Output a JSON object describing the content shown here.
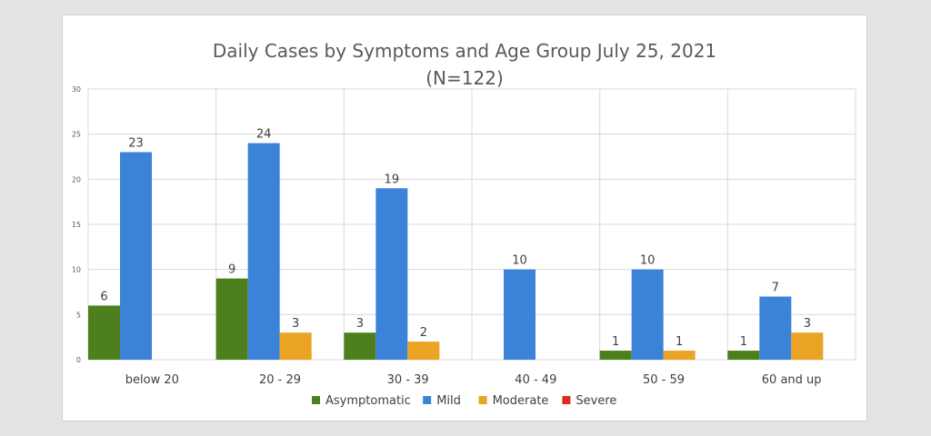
{
  "chart_data": {
    "type": "bar",
    "title": "Daily Cases by Symptoms and Age Group July 25, 2021",
    "subtitle": "(N=122)",
    "categories": [
      "below 20",
      "20 - 29",
      "30 - 39",
      "40 - 49",
      "50 - 59",
      "60 and up"
    ],
    "series": [
      {
        "name": "Asymptomatic",
        "color": "#4e7f1f",
        "values": [
          6,
          9,
          3,
          0,
          1,
          1
        ]
      },
      {
        "name": "Mild",
        "color": "#3b82d9",
        "values": [
          23,
          24,
          19,
          10,
          10,
          7
        ]
      },
      {
        "name": "Moderate",
        "color": "#eaa322",
        "values": [
          0,
          3,
          2,
          0,
          1,
          3
        ]
      },
      {
        "name": "Severe",
        "color": "#e02a1b",
        "values": [
          0,
          0,
          0,
          0,
          0,
          0
        ]
      }
    ],
    "ylim": [
      0,
      30
    ],
    "yticks": [
      0,
      5,
      10,
      15,
      20,
      25,
      30
    ],
    "grid": true,
    "legend": "bottom"
  }
}
